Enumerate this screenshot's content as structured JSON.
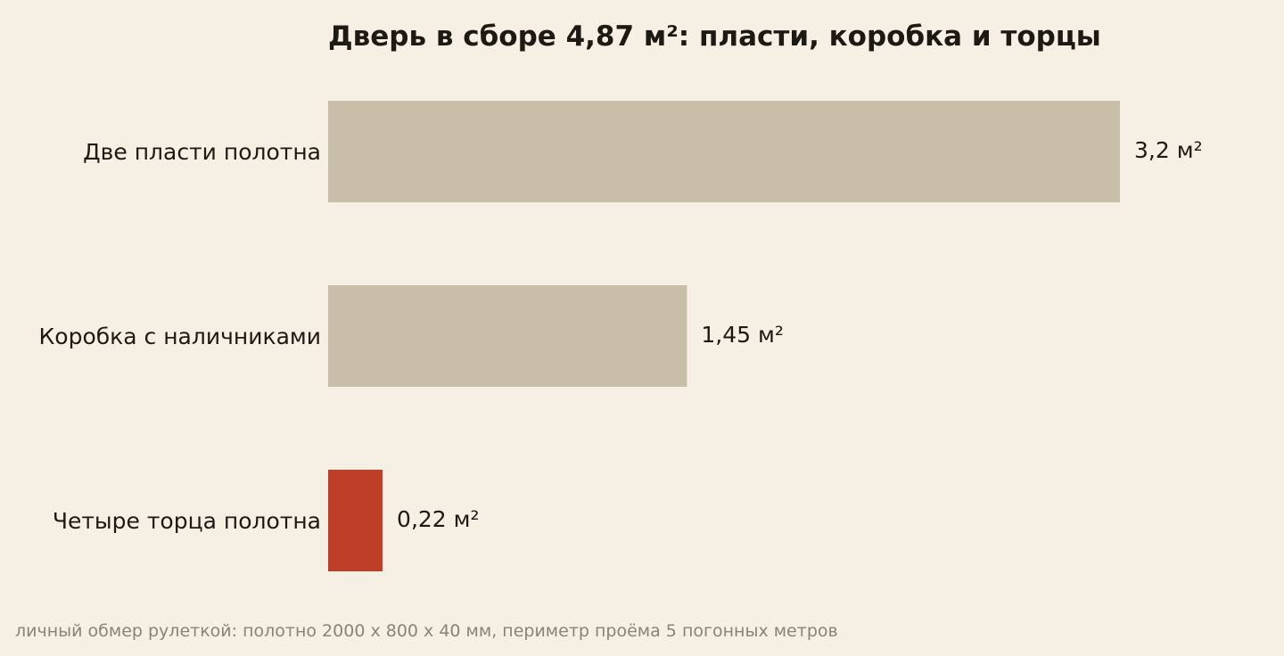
{
  "chart_data": {
    "type": "bar",
    "orientation": "horizontal",
    "title": "Дверь в сборе 4,87 м²: пласти, коробка и торцы",
    "categories": [
      "Две пласти полотна",
      "Коробка с наличниками",
      "Четыре торца полотна"
    ],
    "values": [
      3.2,
      1.45,
      0.22
    ],
    "value_labels": [
      "3,2 м²",
      "1,45 м²",
      "0,22 м²"
    ],
    "unit": "м²",
    "xlim": [
      0,
      3.2
    ],
    "grid": false,
    "legend": "none",
    "colors": [
      "#c9bea8",
      "#c9bea8",
      "#be3e27"
    ],
    "footnote": "личный обмер рулеткой: полотно 2000 x 800 x 40 мм, периметр проёма 5 погонных метров"
  },
  "colors": {
    "background": "#f6f0e4",
    "text": "#1d1a14",
    "muted_text": "#8a8377",
    "neutral_bar": "#c9bea8",
    "highlight_bar": "#be3e27"
  }
}
